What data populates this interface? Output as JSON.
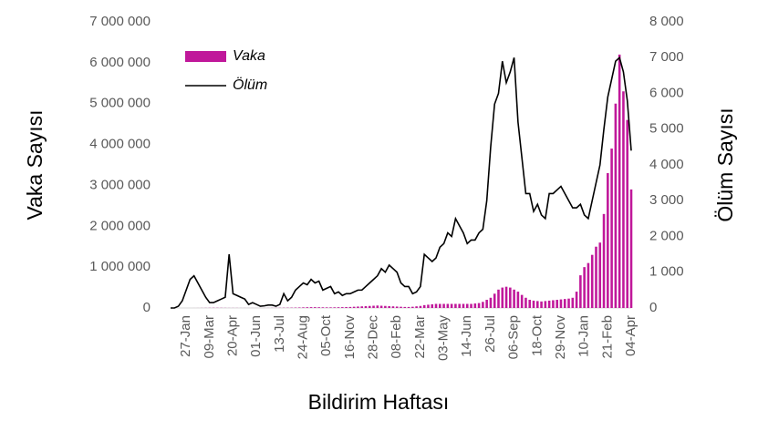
{
  "chart_data": {
    "type": "bar_line",
    "x_label": "Bildirim Haftası",
    "y_label": "Vaka Sayısı",
    "y2_label": "Ölüm Sayısı",
    "categories": [
      null,
      null,
      null,
      null,
      "27-Jan",
      null,
      null,
      null,
      null,
      null,
      "09-Mar",
      null,
      null,
      null,
      null,
      null,
      "20-Apr",
      null,
      null,
      null,
      null,
      null,
      "01-Jun",
      null,
      null,
      null,
      null,
      null,
      "13-Jul",
      null,
      null,
      null,
      null,
      null,
      "24-Aug",
      null,
      null,
      null,
      null,
      null,
      "05-Oct",
      null,
      null,
      null,
      null,
      null,
      "16-Nov",
      null,
      null,
      null,
      null,
      null,
      "28-Dec",
      null,
      null,
      null,
      null,
      null,
      "08-Feb",
      null,
      null,
      null,
      null,
      null,
      "22-Mar",
      null,
      null,
      null,
      null,
      null,
      "03-May",
      null,
      null,
      null,
      null,
      null,
      "14-Jun",
      null,
      null,
      null,
      null,
      null,
      "26-Jul",
      null,
      null,
      null,
      null,
      null,
      "06-Sep",
      null,
      null,
      null,
      null,
      null,
      "18-Oct",
      null,
      null,
      null,
      null,
      null,
      "29-Nov",
      null,
      null,
      null,
      null,
      null,
      "10-Jan",
      null,
      null,
      null,
      null,
      null,
      "21-Feb",
      null,
      null,
      null,
      null,
      null,
      "04-Apr"
    ],
    "series": [
      {
        "name": "Vaka",
        "type": "bar",
        "axis": "y",
        "color": "#c0189a",
        "values": [
          0,
          0,
          0,
          0,
          0,
          0,
          500,
          1000,
          2000,
          3000,
          4000,
          5000,
          5000,
          4000,
          3000,
          2000,
          2000,
          2000,
          1500,
          1500,
          1000,
          1000,
          1000,
          1000,
          1500,
          2000,
          3000,
          4000,
          5000,
          6000,
          7000,
          8000,
          10000,
          12000,
          15000,
          18000,
          20000,
          20000,
          18000,
          16000,
          15000,
          15000,
          16000,
          18000,
          20000,
          22000,
          25000,
          30000,
          35000,
          40000,
          45000,
          50000,
          55000,
          60000,
          55000,
          50000,
          45000,
          40000,
          35000,
          30000,
          25000,
          25000,
          30000,
          40000,
          50000,
          70000,
          80000,
          90000,
          100000,
          100000,
          100000,
          100000,
          100000,
          100000,
          100000,
          100000,
          100000,
          100000,
          110000,
          120000,
          150000,
          200000,
          250000,
          350000,
          450000,
          500000,
          520000,
          500000,
          450000,
          400000,
          320000,
          250000,
          200000,
          180000,
          170000,
          160000,
          170000,
          180000,
          190000,
          200000,
          210000,
          220000,
          230000,
          250000,
          400000,
          800000,
          1000000,
          1100000,
          1300000,
          1500000,
          1600000,
          2300000,
          3300000,
          3900000,
          5000000,
          6200000,
          5300000,
          4600000,
          2900000
        ]
      },
      {
        "name": "Ölüm",
        "type": "line",
        "axis": "y2",
        "color": "#000000",
        "values": [
          0,
          0,
          50,
          200,
          500,
          800,
          900,
          700,
          500,
          300,
          150,
          150,
          200,
          250,
          300,
          1500,
          400,
          350,
          300,
          250,
          100,
          150,
          100,
          50,
          60,
          80,
          80,
          50,
          100,
          400,
          200,
          300,
          500,
          600,
          700,
          650,
          800,
          700,
          750,
          500,
          550,
          600,
          400,
          450,
          350,
          400,
          400,
          450,
          500,
          500,
          600,
          700,
          800,
          900,
          1100,
          1000,
          1200,
          1100,
          1000,
          700,
          600,
          600,
          400,
          450,
          600,
          1500,
          1400,
          1300,
          1400,
          1700,
          1800,
          2100,
          2000,
          2500,
          2300,
          2100,
          1800,
          1900,
          1900,
          2100,
          2200,
          3000,
          4500,
          5700,
          6000,
          6900,
          6300,
          6600,
          7000,
          5200,
          4200,
          3200,
          3200,
          2700,
          2900,
          2600,
          2500,
          3200,
          3200,
          3300,
          3400,
          3200,
          3000,
          2800,
          2800,
          2900,
          2600,
          2500,
          3000,
          3500,
          4000,
          5000,
          5900,
          6400,
          6900,
          7000,
          6600,
          5800,
          4400
        ]
      }
    ],
    "ylim": [
      0,
      7000000
    ],
    "yticks": [
      0,
      {
        "value": 1000000,
        "label": "1 000 000"
      },
      {
        "value": 2000000,
        "label": "2 000 000"
      },
      {
        "value": 3000000,
        "label": "3 000 000"
      },
      {
        "value": 4000000,
        "label": "4 000 000"
      },
      {
        "value": 5000000,
        "label": "5 000 000"
      },
      {
        "value": 6000000,
        "label": "6 000 000"
      },
      {
        "value": 7000000,
        "label": "7 000 000"
      }
    ],
    "y2lim": [
      0,
      8000
    ],
    "y2ticks": [
      0,
      {
        "value": 1000,
        "label": "1 000"
      },
      {
        "value": 2000,
        "label": "2 000"
      },
      {
        "value": 3000,
        "label": "3 000"
      },
      {
        "value": 4000,
        "label": "4 000"
      },
      {
        "value": 5000,
        "label": "5 000"
      },
      {
        "value": 6000,
        "label": "6 000"
      },
      {
        "value": 7000,
        "label": "7 000"
      },
      {
        "value": 8000,
        "label": "8 000"
      }
    ],
    "legend": "upper left",
    "grid": false
  }
}
